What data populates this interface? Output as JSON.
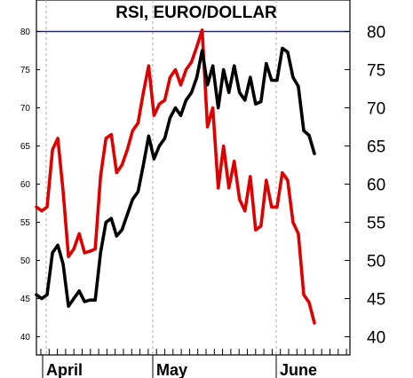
{
  "chart_data": {
    "type": "line",
    "title": "RSI, EURO/DOLLAR",
    "xlabel": "",
    "ylabel": "",
    "ylim": [
      38,
      85
    ],
    "yticks": [
      40,
      45,
      50,
      55,
      60,
      65,
      70,
      75,
      80
    ],
    "month_labels": [
      "April",
      "May",
      "June"
    ],
    "grid": "vertical dashed lines at month starts",
    "reference_line": {
      "value": 80,
      "color": "#1f1fb0"
    },
    "series": [
      {
        "color": "#e00000",
        "values": [
          57,
          56.5,
          57,
          64.5,
          66,
          59,
          50.5,
          51.5,
          53.5,
          51,
          51.2,
          51.5,
          61,
          66,
          66.5,
          61.5,
          62.5,
          64.5,
          67,
          68,
          72,
          75.5,
          69,
          70.5,
          71,
          74,
          75,
          73,
          75,
          76,
          78,
          80.2,
          67.5,
          70,
          59.5,
          65,
          59.5,
          63,
          58,
          56.5,
          61,
          54,
          54.5,
          60.5,
          57,
          57,
          61.5,
          60.5,
          55,
          53.5,
          45.5,
          44.5,
          41.8
        ]
      },
      {
        "color": "#000000",
        "values": [
          45.5,
          45,
          45.5,
          51,
          52,
          49.5,
          44,
          45,
          46,
          44.6,
          44.8,
          44.8,
          51,
          55,
          55.5,
          53.2,
          54,
          56,
          58,
          59,
          62.5,
          66.3,
          63.3,
          65,
          66,
          68.7,
          70,
          69,
          71,
          72,
          74,
          77.5,
          73,
          75.5,
          70,
          75,
          72,
          75.5,
          72,
          71,
          74,
          70.5,
          70.8,
          75.8,
          73.6,
          73.6,
          77.8,
          77.3,
          74,
          72.8,
          67,
          66.4,
          64
        ]
      }
    ]
  }
}
